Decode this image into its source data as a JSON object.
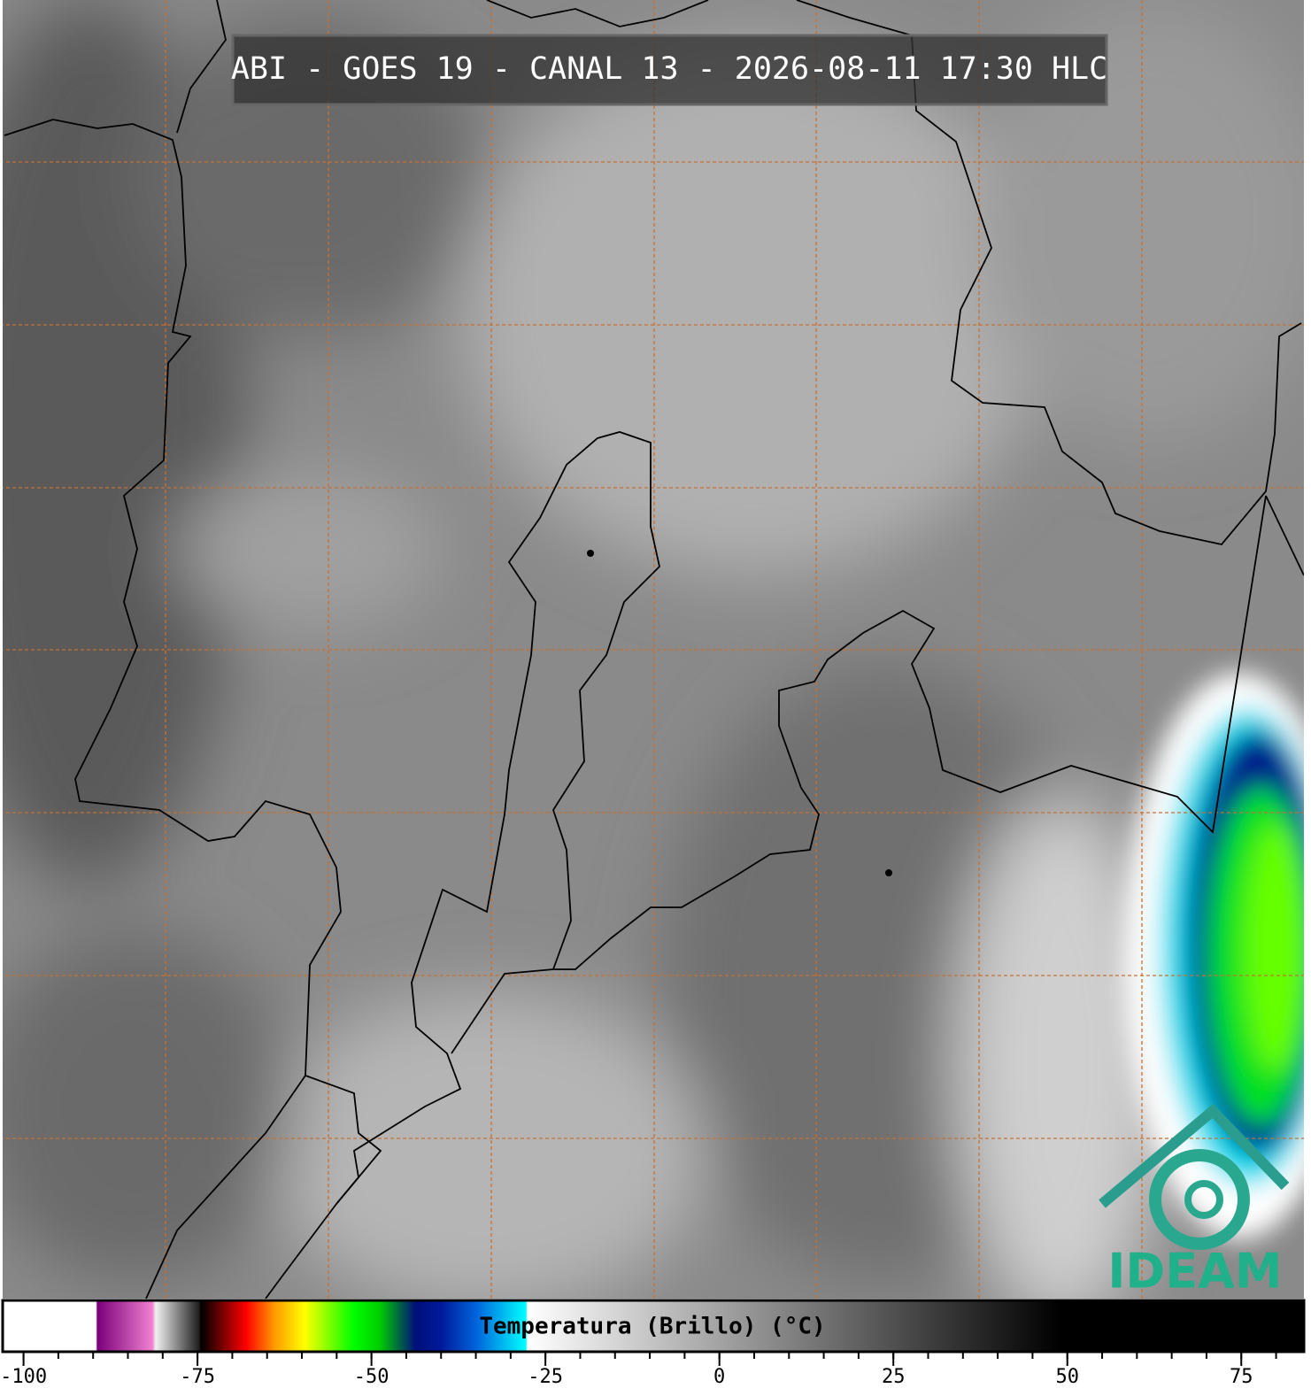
{
  "title": "ABI - GOES 19 - CANAL 13 - 2026-08-11 17:30 HLC",
  "logo": "IDEAM",
  "colorbar": {
    "label": "Temperatura (Brillo) (°C)",
    "range": [
      -103,
      84
    ],
    "ticks": [
      -100,
      -75,
      -50,
      -25,
      0,
      25,
      50,
      75
    ],
    "colormap": [
      {
        "value": -103,
        "color": "#ffffff"
      },
      {
        "value": -89.6,
        "color": "#ffffff"
      },
      {
        "value": -89.4,
        "color": "#7a007a"
      },
      {
        "value": -81.5,
        "color": "#f080d0"
      },
      {
        "value": -81,
        "color": "#f0f0f0"
      },
      {
        "value": -74.8,
        "color": "#202020"
      },
      {
        "value": -74.5,
        "color": "#000000"
      },
      {
        "value": -68,
        "color": "#ff0000"
      },
      {
        "value": -64,
        "color": "#ff9900"
      },
      {
        "value": -59.6,
        "color": "#ffff00"
      },
      {
        "value": -52.6,
        "color": "#00ff00"
      },
      {
        "value": -48.8,
        "color": "#00cc00"
      },
      {
        "value": -43.7,
        "color": "#00107a"
      },
      {
        "value": -40,
        "color": "#001a9a"
      },
      {
        "value": -34.8,
        "color": "#0066dd"
      },
      {
        "value": -27.8,
        "color": "#00ffff"
      },
      {
        "value": -27.6,
        "color": "#ffffff"
      },
      {
        "value": 49,
        "color": "#000000"
      },
      {
        "value": 84,
        "color": "#000000"
      }
    ]
  }
}
